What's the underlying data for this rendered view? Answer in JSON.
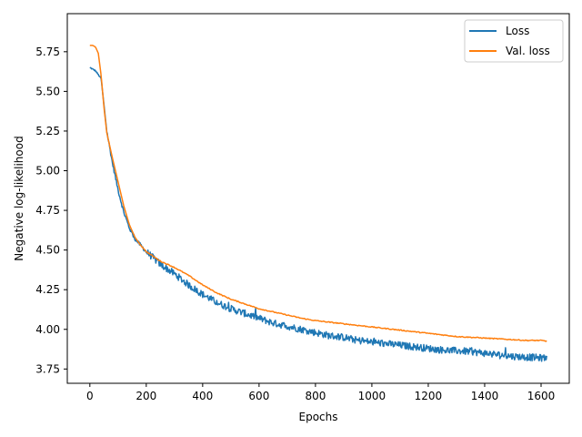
{
  "chart_data": {
    "type": "line",
    "title": "",
    "xlabel": "Epochs",
    "ylabel": "Negative log-likelihood",
    "xlim": [
      -80,
      1700
    ],
    "ylim": [
      3.66,
      5.99
    ],
    "xticks": [
      0,
      200,
      400,
      600,
      800,
      1000,
      1200,
      1400,
      1600
    ],
    "yticks": [
      3.75,
      4.0,
      4.25,
      4.5,
      4.75,
      5.0,
      5.25,
      5.5,
      5.75
    ],
    "ytick_labels": [
      "3.75",
      "4.00",
      "4.25",
      "4.50",
      "4.75",
      "5.00",
      "5.25",
      "5.50",
      "5.75"
    ],
    "grid": false,
    "legend_position": "upper right",
    "series": [
      {
        "name": "Loss",
        "color": "#1f77b4",
        "noisy": true,
        "x": [
          0,
          20,
          40,
          60,
          80,
          100,
          120,
          140,
          160,
          180,
          200,
          250,
          300,
          350,
          400,
          450,
          500,
          550,
          600,
          650,
          700,
          750,
          800,
          850,
          900,
          950,
          1000,
          1050,
          1100,
          1150,
          1200,
          1250,
          1300,
          1350,
          1400,
          1450,
          1500,
          1550,
          1600,
          1620
        ],
        "y": [
          5.65,
          5.63,
          5.58,
          5.25,
          5.05,
          4.88,
          4.74,
          4.64,
          4.57,
          4.53,
          4.49,
          4.41,
          4.35,
          4.28,
          4.22,
          4.17,
          4.13,
          4.1,
          4.07,
          4.04,
          4.02,
          4.0,
          3.98,
          3.96,
          3.95,
          3.93,
          3.92,
          3.91,
          3.9,
          3.89,
          3.88,
          3.87,
          3.865,
          3.86,
          3.85,
          3.84,
          3.83,
          3.825,
          3.82,
          3.82
        ]
      },
      {
        "name": "Val. loss",
        "color": "#ff7f0e",
        "noisy": false,
        "x": [
          0,
          10,
          20,
          30,
          40,
          50,
          60,
          80,
          100,
          120,
          140,
          160,
          180,
          200,
          250,
          300,
          350,
          400,
          450,
          500,
          550,
          600,
          650,
          700,
          750,
          800,
          850,
          900,
          950,
          1000,
          1050,
          1100,
          1150,
          1200,
          1250,
          1300,
          1350,
          1400,
          1450,
          1500,
          1550,
          1600,
          1620
        ],
        "y": [
          5.79,
          5.79,
          5.78,
          5.74,
          5.6,
          5.4,
          5.24,
          5.08,
          4.93,
          4.78,
          4.66,
          4.58,
          4.53,
          4.49,
          4.43,
          4.39,
          4.34,
          4.28,
          4.23,
          4.19,
          4.16,
          4.13,
          4.11,
          4.09,
          4.07,
          4.055,
          4.045,
          4.035,
          4.025,
          4.015,
          4.005,
          3.995,
          3.985,
          3.975,
          3.965,
          3.955,
          3.95,
          3.945,
          3.94,
          3.935,
          3.93,
          3.93,
          3.925
        ]
      }
    ]
  }
}
